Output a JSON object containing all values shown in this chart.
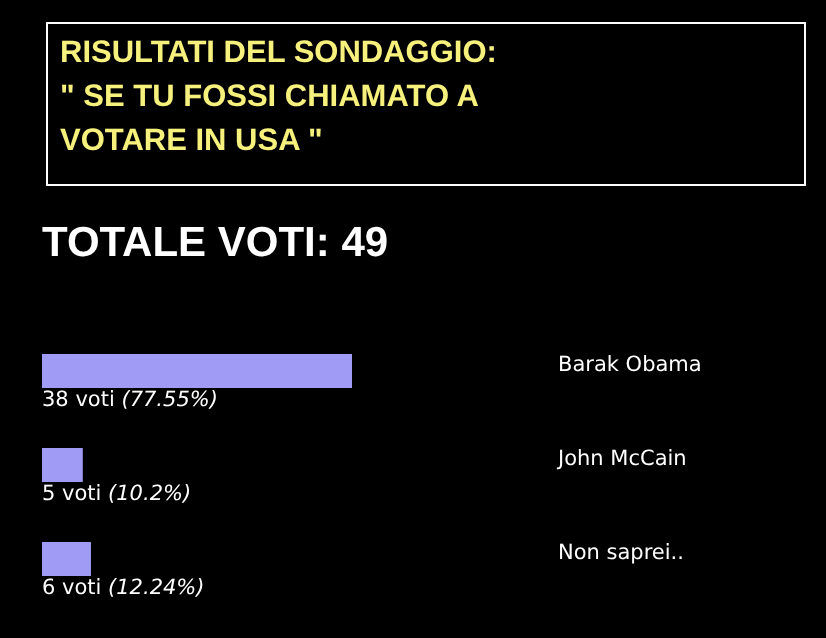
{
  "chart_data": {
    "type": "bar",
    "orientation": "horizontal",
    "title": "RISULTATI DEL SONDAGGIO:\n\" SE TU FOSSI CHIAMATO A\nVOTARE IN USA \"",
    "subtitle": "TOTALE VOTI: 49",
    "categories": [
      "Barak Obama",
      "John McCain",
      "Non saprei.."
    ],
    "values": [
      38,
      5,
      6
    ],
    "value_labels": [
      "38 voti (77.55%)",
      "5 voti (10.2%)",
      "6 voti (12.24%)"
    ],
    "color": "#a09cf6",
    "legend": false,
    "grid": false
  }
}
